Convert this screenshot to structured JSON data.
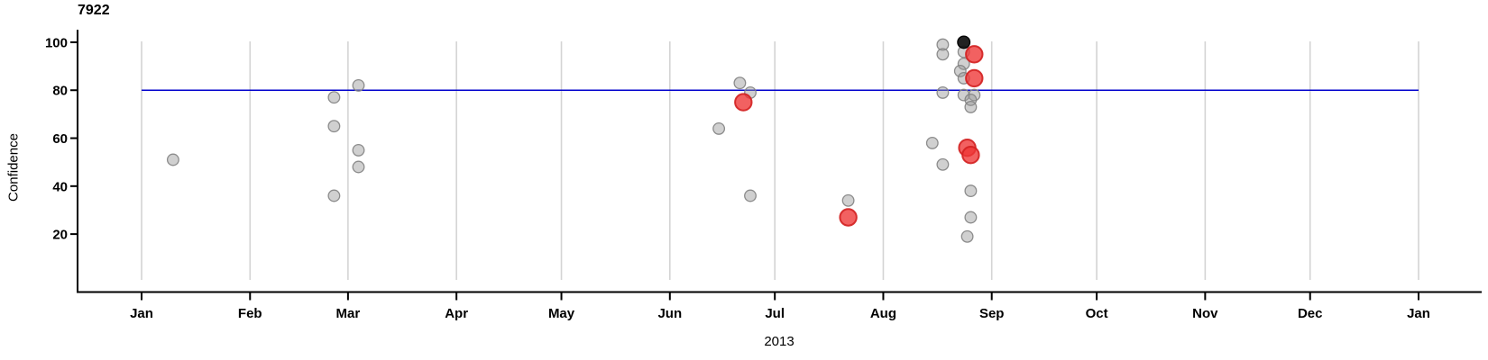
{
  "chart_data": {
    "type": "scatter",
    "title": "7922",
    "xlabel": "2013",
    "ylabel": "Confidence",
    "x_axis": {
      "tick_labels": [
        "Jan",
        "Feb",
        "Mar",
        "Apr",
        "May",
        "Jun",
        "Jul",
        "Aug",
        "Sep",
        "Oct",
        "Nov",
        "Dec",
        "Jan"
      ],
      "tick_dates": [
        "2013-01-01",
        "2013-02-01",
        "2013-03-01",
        "2013-04-01",
        "2013-05-01",
        "2013-06-01",
        "2013-07-01",
        "2013-08-01",
        "2013-09-01",
        "2013-10-01",
        "2013-11-01",
        "2013-12-01",
        "2014-01-01"
      ],
      "range": [
        "2013-01-01",
        "2014-01-01"
      ]
    },
    "y_axis": {
      "ticks": [
        20,
        40,
        60,
        80,
        100
      ],
      "range": [
        0,
        103
      ]
    },
    "grid": "vertical-month-lines",
    "legend": "none",
    "reference_line": {
      "value": 80,
      "orientation": "horizontal",
      "color": "#0101CD"
    },
    "colors": {
      "standard": "#C6C6C6",
      "highlighted": "#F03C3C",
      "dark": "#1A1A1A",
      "gridline": "#D4D4D4",
      "axis": "#000000"
    },
    "series": [
      {
        "name": "standard-points",
        "color": "#C6C6C6",
        "marker": "circle-small",
        "points": [
          {
            "date": "2013-01-10",
            "value": 51
          },
          {
            "date": "2013-02-25",
            "value": 77
          },
          {
            "date": "2013-02-25",
            "value": 65
          },
          {
            "date": "2013-02-25",
            "value": 36
          },
          {
            "date": "2013-03-04",
            "value": 82
          },
          {
            "date": "2013-03-04",
            "value": 55
          },
          {
            "date": "2013-03-04",
            "value": 48
          },
          {
            "date": "2013-06-15",
            "value": 64
          },
          {
            "date": "2013-06-21",
            "value": 83
          },
          {
            "date": "2013-06-24",
            "value": 79
          },
          {
            "date": "2013-06-24",
            "value": 36
          },
          {
            "date": "2013-07-22",
            "value": 34
          },
          {
            "date": "2013-08-15",
            "value": 58
          },
          {
            "date": "2013-08-18",
            "value": 49
          },
          {
            "date": "2013-08-18",
            "value": 79
          },
          {
            "date": "2013-08-18",
            "value": 99
          },
          {
            "date": "2013-08-18",
            "value": 95
          },
          {
            "date": "2013-08-24",
            "value": 96
          },
          {
            "date": "2013-08-24",
            "value": 91
          },
          {
            "date": "2013-08-23",
            "value": 88
          },
          {
            "date": "2013-08-24",
            "value": 85
          },
          {
            "date": "2013-08-24",
            "value": 78
          },
          {
            "date": "2013-08-27",
            "value": 78
          },
          {
            "date": "2013-08-26",
            "value": 76
          },
          {
            "date": "2013-08-26",
            "value": 73
          },
          {
            "date": "2013-08-26",
            "value": 38
          },
          {
            "date": "2013-08-26",
            "value": 27
          },
          {
            "date": "2013-08-25",
            "value": 19
          }
        ]
      },
      {
        "name": "dark-point",
        "color": "#1A1A1A",
        "marker": "circle-small",
        "points": [
          {
            "date": "2013-08-24",
            "value": 100
          }
        ]
      },
      {
        "name": "highlighted-points",
        "color": "#F03C3C",
        "marker": "circle-large",
        "points": [
          {
            "date": "2013-06-22",
            "value": 75
          },
          {
            "date": "2013-07-22",
            "value": 27
          },
          {
            "date": "2013-08-27",
            "value": 95
          },
          {
            "date": "2013-08-27",
            "value": 85
          },
          {
            "date": "2013-08-25",
            "value": 56
          },
          {
            "date": "2013-08-26",
            "value": 53
          }
        ]
      }
    ]
  }
}
